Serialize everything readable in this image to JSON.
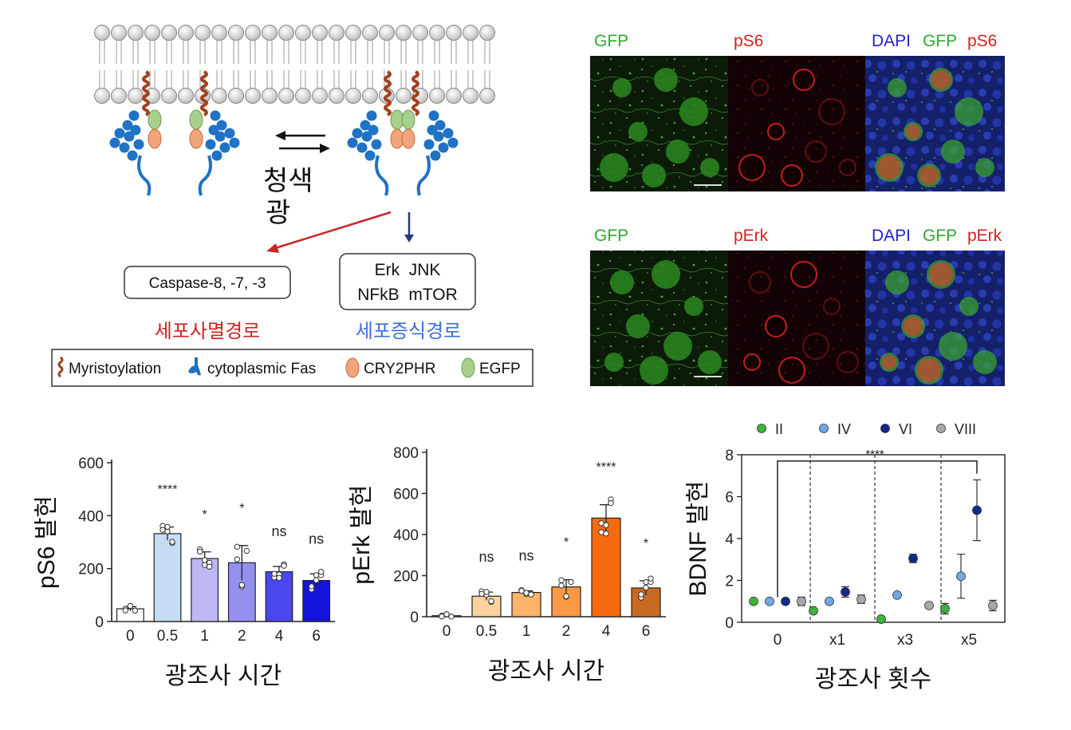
{
  "diagram": {
    "light_label_line1": "청색",
    "light_label_line2": "광",
    "apoptosis_box": "Caspase-8, -7, -3",
    "survival_box_line1": "Erk  JNK",
    "survival_box_line2": "NFkB  mTOR",
    "apoptosis_pathway": "세포사멸경로",
    "survival_pathway": "세포증식경로",
    "legend": {
      "myristoylation": "Myristoylation",
      "cytoplasmic_fas": "cytoplasmic Fas",
      "cry2phr": "CRY2PHR",
      "egfp": "EGFP"
    },
    "colors": {
      "fas": "#1f72c4",
      "cry2": "#f2a47c",
      "egfp": "#a8d08d",
      "myr": "#a0401c",
      "red_arrow": "#cc2222",
      "blue_arrow": "#1f3a78"
    }
  },
  "micrographs": {
    "row1": {
      "gfp": "GFP",
      "marker": "pS6",
      "merge_dapi": "DAPI",
      "merge_gfp": "GFP",
      "merge_marker": "pS6"
    },
    "row2": {
      "gfp": "GFP",
      "marker": "pErk",
      "merge_dapi": "DAPI",
      "merge_gfp": "GFP",
      "merge_marker": "pErk"
    }
  },
  "chart_data": [
    {
      "type": "bar",
      "ylabel": "pS6 발현",
      "xlabel": "광조사 시간",
      "ylim": [
        0,
        600
      ],
      "yticks": [
        "0",
        "200",
        "400",
        "600"
      ],
      "categories": [
        "0",
        "0.5",
        "1",
        "2",
        "4",
        "6"
      ],
      "values": [
        48,
        332,
        238,
        222,
        188,
        155
      ],
      "errors": [
        8,
        25,
        25,
        65,
        20,
        25
      ],
      "significance": [
        "",
        "****",
        "*",
        "*",
        "ns",
        "ns"
      ],
      "colors": [
        "#ffffff",
        "#c5dcf4",
        "#bdb8f4",
        "#9590ef",
        "#4b46ef",
        "#1414dc"
      ]
    },
    {
      "type": "bar",
      "ylabel": "pErk 발현",
      "xlabel": "광조사 시간",
      "ylim": [
        0,
        800
      ],
      "yticks": [
        "0",
        "200",
        "400",
        "600",
        "800"
      ],
      "categories": [
        "0",
        "0.5",
        "1",
        "2",
        "4",
        "6"
      ],
      "values": [
        5,
        100,
        118,
        145,
        480,
        140
      ],
      "errors": [
        5,
        20,
        8,
        35,
        65,
        35
      ],
      "significance": [
        "",
        "ns",
        "ns",
        "*",
        "****",
        "*"
      ],
      "colors": [
        "#ffffff",
        "#fbd19d",
        "#fbb46a",
        "#f99a45",
        "#f76a10",
        "#c96a22"
      ]
    },
    {
      "type": "scatter",
      "ylabel": "BDNF 발현",
      "xlabel": "광조사 횟수",
      "ylim": [
        0,
        8
      ],
      "yticks": [
        "0",
        "2",
        "4",
        "6",
        "8"
      ],
      "categories": [
        "0",
        "x1",
        "x3",
        "x5"
      ],
      "significance": "****",
      "series": [
        {
          "name": "II",
          "color": "#3cb43c",
          "values": [
            1.0,
            0.55,
            0.15,
            0.65
          ],
          "errors": [
            0,
            0,
            0,
            0.25
          ]
        },
        {
          "name": "IV",
          "color": "#6fa8e8",
          "values": [
            1.0,
            1.0,
            1.3,
            2.2
          ],
          "errors": [
            0,
            0,
            0,
            1.05
          ]
        },
        {
          "name": "VI",
          "color": "#14288c",
          "values": [
            1.0,
            1.45,
            3.05,
            5.35
          ],
          "errors": [
            0,
            0.25,
            0.2,
            1.45
          ]
        },
        {
          "name": "VIII",
          "color": "#a8a8a8",
          "values": [
            1.0,
            1.1,
            0.8,
            0.8
          ],
          "errors": [
            0.2,
            0.2,
            0.1,
            0.25
          ]
        }
      ]
    }
  ]
}
